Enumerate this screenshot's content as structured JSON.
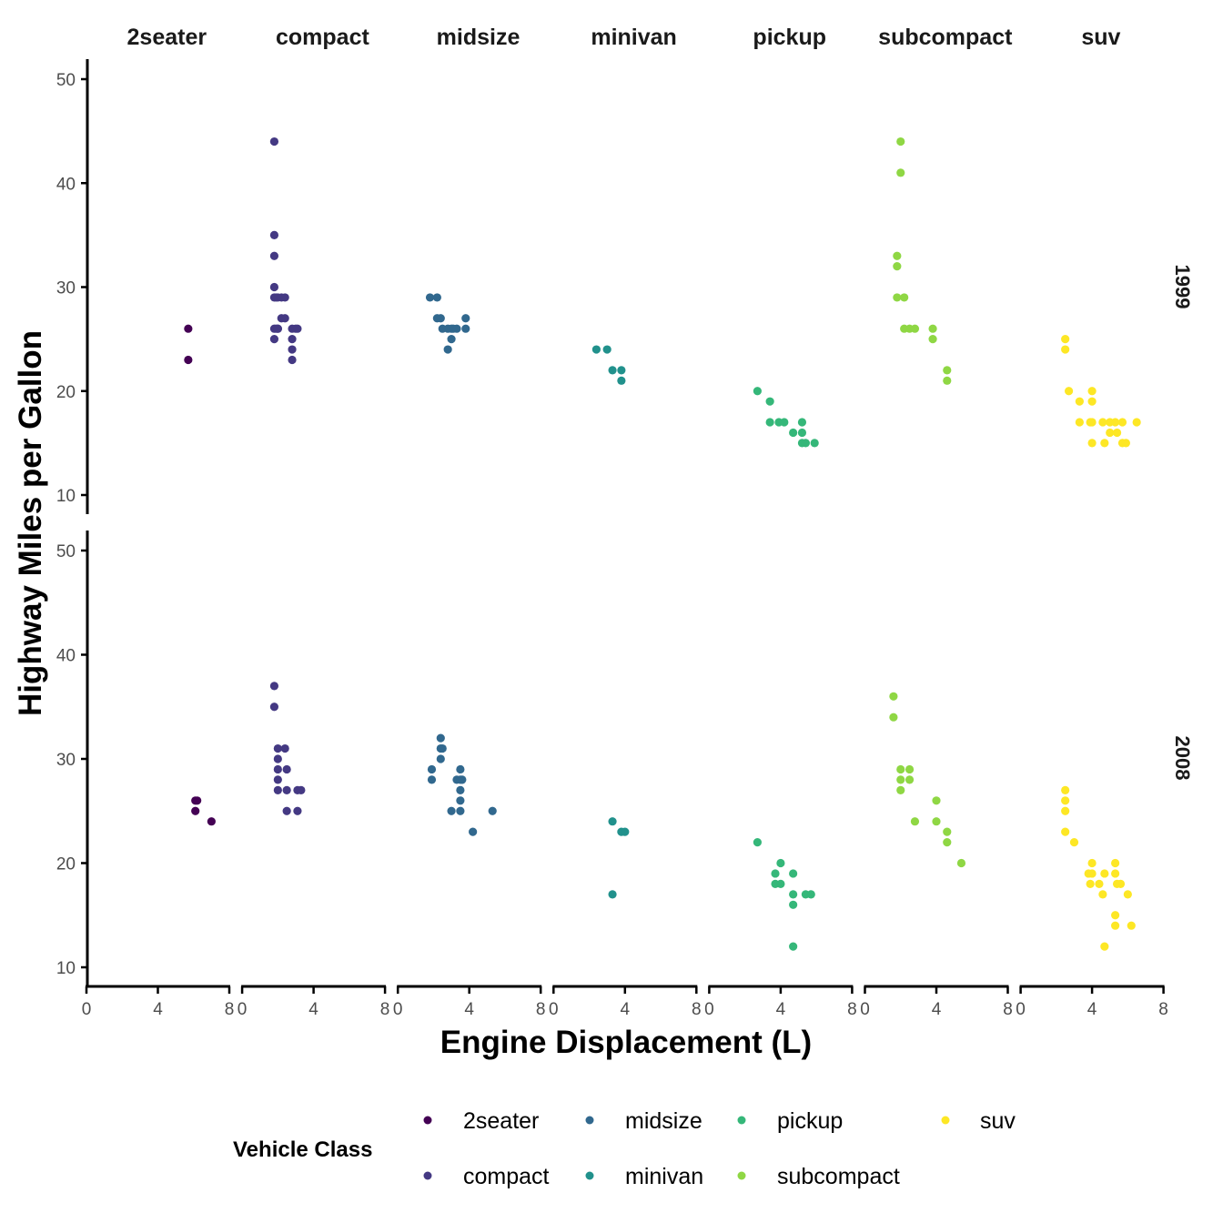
{
  "chart_data": {
    "type": "scatter",
    "xlabel": "Engine Displacement (L)",
    "ylabel": "Highway Miles per Gallon",
    "xlim": [
      0,
      8
    ],
    "ylim": [
      10,
      50
    ],
    "x_ticks": [
      0,
      4,
      8
    ],
    "y_ticks": [
      10,
      20,
      30,
      40,
      50
    ],
    "grid": false,
    "facet_cols": [
      "2seater",
      "compact",
      "midsize",
      "minivan",
      "pickup",
      "subcompact",
      "suv"
    ],
    "facet_rows": [
      "1999",
      "2008"
    ],
    "legend": {
      "title": "Vehicle Class",
      "position": "bottom",
      "entries": [
        {
          "label": "2seater",
          "color": "#440154"
        },
        {
          "label": "compact",
          "color": "#443983"
        },
        {
          "label": "midsize",
          "color": "#31688E"
        },
        {
          "label": "minivan",
          "color": "#21918C"
        },
        {
          "label": "pickup",
          "color": "#35B779"
        },
        {
          "label": "subcompact",
          "color": "#8FD744"
        },
        {
          "label": "suv",
          "color": "#FDE725"
        }
      ]
    },
    "series": [
      {
        "name": "2seater",
        "year": "1999",
        "points": [
          [
            5.7,
            26
          ],
          [
            5.7,
            23
          ]
        ]
      },
      {
        "name": "2seater",
        "year": "2008",
        "points": [
          [
            6.1,
            26
          ],
          [
            6.1,
            25
          ],
          [
            6.2,
            26
          ],
          [
            7.0,
            24
          ]
        ]
      },
      {
        "name": "compact",
        "year": "1999",
        "points": [
          [
            1.8,
            44
          ],
          [
            1.8,
            35
          ],
          [
            1.8,
            33
          ],
          [
            1.8,
            30
          ],
          [
            1.8,
            29
          ],
          [
            1.9,
            29
          ],
          [
            2.0,
            29
          ],
          [
            2.2,
            29
          ],
          [
            2.4,
            29
          ],
          [
            2.2,
            27
          ],
          [
            2.4,
            27
          ],
          [
            1.8,
            26
          ],
          [
            1.9,
            26
          ],
          [
            2.0,
            26
          ],
          [
            2.8,
            26
          ],
          [
            3.0,
            26
          ],
          [
            3.1,
            26
          ],
          [
            2.0,
            26
          ],
          [
            1.8,
            25
          ],
          [
            2.8,
            25
          ],
          [
            2.8,
            24
          ],
          [
            2.8,
            23
          ]
        ]
      },
      {
        "name": "compact",
        "year": "2008",
        "points": [
          [
            1.8,
            37
          ],
          [
            1.8,
            35
          ],
          [
            2.0,
            31
          ],
          [
            2.4,
            31
          ],
          [
            2.0,
            30
          ],
          [
            2.0,
            29
          ],
          [
            2.5,
            29
          ],
          [
            2.0,
            28
          ],
          [
            2.0,
            27
          ],
          [
            2.5,
            27
          ],
          [
            3.1,
            27
          ],
          [
            3.3,
            27
          ],
          [
            2.5,
            25
          ],
          [
            3.1,
            25
          ]
        ]
      },
      {
        "name": "midsize",
        "year": "1999",
        "points": [
          [
            1.8,
            29
          ],
          [
            2.2,
            29
          ],
          [
            2.2,
            27
          ],
          [
            2.4,
            27
          ],
          [
            3.8,
            27
          ],
          [
            2.5,
            26
          ],
          [
            2.8,
            26
          ],
          [
            3.0,
            26
          ],
          [
            3.1,
            26
          ],
          [
            3.3,
            26
          ],
          [
            3.8,
            26
          ],
          [
            3.0,
            25
          ],
          [
            2.8,
            24
          ]
        ]
      },
      {
        "name": "midsize",
        "year": "2008",
        "points": [
          [
            2.4,
            32
          ],
          [
            2.4,
            31
          ],
          [
            2.5,
            31
          ],
          [
            2.4,
            30
          ],
          [
            1.9,
            29
          ],
          [
            3.5,
            29
          ],
          [
            1.9,
            28
          ],
          [
            3.3,
            28
          ],
          [
            3.5,
            28
          ],
          [
            3.6,
            28
          ],
          [
            3.5,
            27
          ],
          [
            3.5,
            26
          ],
          [
            3.0,
            25
          ],
          [
            3.5,
            25
          ],
          [
            5.3,
            25
          ],
          [
            4.2,
            23
          ]
        ]
      },
      {
        "name": "minivan",
        "year": "1999",
        "points": [
          [
            2.4,
            24
          ],
          [
            3.0,
            24
          ],
          [
            3.3,
            22
          ],
          [
            3.8,
            22
          ],
          [
            3.8,
            21
          ]
        ]
      },
      {
        "name": "minivan",
        "year": "2008",
        "points": [
          [
            3.3,
            24
          ],
          [
            3.8,
            23
          ],
          [
            4.0,
            23
          ],
          [
            3.3,
            17
          ]
        ]
      },
      {
        "name": "pickup",
        "year": "1999",
        "points": [
          [
            2.7,
            20
          ],
          [
            3.4,
            19
          ],
          [
            3.4,
            17
          ],
          [
            3.9,
            17
          ],
          [
            4.2,
            17
          ],
          [
            5.2,
            17
          ],
          [
            4.7,
            16
          ],
          [
            5.2,
            16
          ],
          [
            5.2,
            15
          ],
          [
            5.4,
            15
          ],
          [
            5.9,
            15
          ]
        ]
      },
      {
        "name": "pickup",
        "year": "2008",
        "points": [
          [
            2.7,
            22
          ],
          [
            4.0,
            20
          ],
          [
            3.7,
            19
          ],
          [
            4.7,
            19
          ],
          [
            3.7,
            18
          ],
          [
            4.0,
            18
          ],
          [
            4.7,
            17
          ],
          [
            5.4,
            17
          ],
          [
            5.7,
            17
          ],
          [
            4.7,
            16
          ],
          [
            4.7,
            12
          ]
        ]
      },
      {
        "name": "subcompact",
        "year": "1999",
        "points": [
          [
            2.0,
            44
          ],
          [
            2.0,
            41
          ],
          [
            1.8,
            33
          ],
          [
            1.8,
            32
          ],
          [
            1.8,
            29
          ],
          [
            2.2,
            29
          ],
          [
            2.2,
            26
          ],
          [
            2.5,
            26
          ],
          [
            2.8,
            26
          ],
          [
            3.8,
            26
          ],
          [
            3.8,
            25
          ],
          [
            4.6,
            22
          ],
          [
            4.6,
            21
          ]
        ]
      },
      {
        "name": "subcompact",
        "year": "2008",
        "points": [
          [
            1.6,
            36
          ],
          [
            1.6,
            34
          ],
          [
            2.0,
            29
          ],
          [
            2.5,
            29
          ],
          [
            2.0,
            28
          ],
          [
            2.5,
            28
          ],
          [
            2.0,
            27
          ],
          [
            4.0,
            26
          ],
          [
            2.8,
            24
          ],
          [
            4.0,
            24
          ],
          [
            4.6,
            23
          ],
          [
            4.6,
            22
          ],
          [
            5.4,
            20
          ]
        ]
      },
      {
        "name": "suv",
        "year": "1999",
        "points": [
          [
            2.5,
            25
          ],
          [
            2.5,
            24
          ],
          [
            2.7,
            20
          ],
          [
            4.0,
            20
          ],
          [
            3.3,
            19
          ],
          [
            4.0,
            19
          ],
          [
            3.3,
            17
          ],
          [
            3.9,
            17
          ],
          [
            4.0,
            17
          ],
          [
            4.6,
            17
          ],
          [
            5.0,
            17
          ],
          [
            5.3,
            17
          ],
          [
            5.7,
            17
          ],
          [
            6.5,
            17
          ],
          [
            5.0,
            16
          ],
          [
            5.4,
            16
          ],
          [
            4.0,
            15
          ],
          [
            4.7,
            15
          ],
          [
            5.7,
            15
          ],
          [
            5.9,
            15
          ]
        ]
      },
      {
        "name": "suv",
        "year": "2008",
        "points": [
          [
            2.5,
            27
          ],
          [
            2.5,
            26
          ],
          [
            2.5,
            25
          ],
          [
            2.5,
            23
          ],
          [
            3.0,
            22
          ],
          [
            4.0,
            20
          ],
          [
            5.3,
            20
          ],
          [
            3.8,
            19
          ],
          [
            4.0,
            19
          ],
          [
            4.7,
            19
          ],
          [
            5.3,
            19
          ],
          [
            3.9,
            18
          ],
          [
            4.4,
            18
          ],
          [
            5.4,
            18
          ],
          [
            5.6,
            18
          ],
          [
            4.6,
            17
          ],
          [
            6.0,
            17
          ],
          [
            5.3,
            15
          ],
          [
            5.3,
            14
          ],
          [
            6.2,
            14
          ],
          [
            4.7,
            12
          ]
        ]
      }
    ]
  }
}
